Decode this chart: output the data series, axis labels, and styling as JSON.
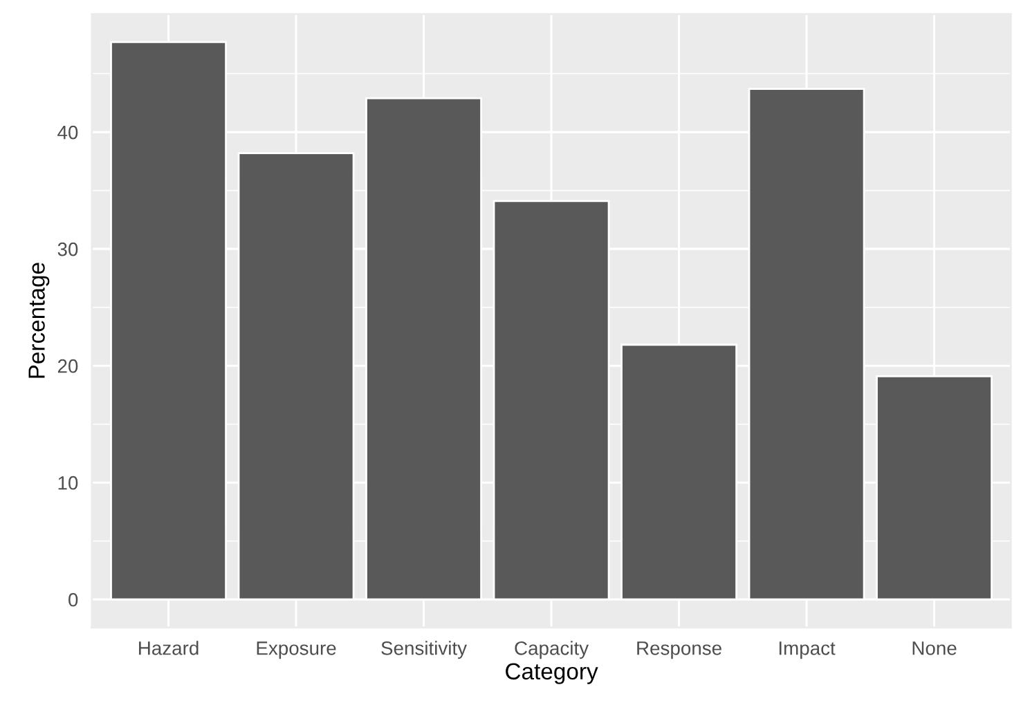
{
  "chart_data": {
    "type": "bar",
    "xlabel": "Category",
    "ylabel": "Percentage",
    "categories": [
      "Hazard",
      "Exposure",
      "Sensitivity",
      "Capacity",
      "Response",
      "Impact",
      "None"
    ],
    "values": [
      47.7,
      38.2,
      42.9,
      34.1,
      21.8,
      43.7,
      19.1
    ],
    "color": "#595959",
    "ylim": [
      -2.4,
      50.1
    ],
    "yticks": [
      0,
      10,
      20,
      30,
      40
    ],
    "grid": true
  }
}
